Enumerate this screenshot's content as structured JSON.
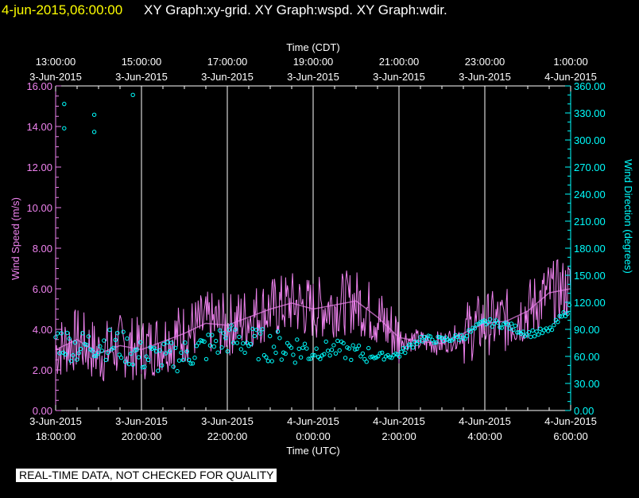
{
  "header": {
    "timestamp": "4-jun-2015,06:00:00",
    "graphs": "XY Graph:xy-grid.  XY Graph:wspd.  XY Graph:wdir."
  },
  "quality_note": "REAL-TIME DATA, NOT CHECKED FOR QUALITY",
  "colors": {
    "speed": "#ee82ee",
    "direction": "#00ffff",
    "grid": "#ffffff",
    "text": "#ffffff"
  },
  "chart_data": {
    "type": "line",
    "top_axis": {
      "title": "Time (CDT)",
      "ticks": [
        {
          "time": "13:00:00",
          "date": "3-Jun-2015"
        },
        {
          "time": "15:00:00",
          "date": "3-Jun-2015"
        },
        {
          "time": "17:00:00",
          "date": "3-Jun-2015"
        },
        {
          "time": "19:00:00",
          "date": "3-Jun-2015"
        },
        {
          "time": "21:00:00",
          "date": "3-Jun-2015"
        },
        {
          "time": "23:00:00",
          "date": "3-Jun-2015"
        },
        {
          "time": "1:00:00",
          "date": "4-Jun-2015"
        }
      ]
    },
    "bottom_axis": {
      "title": "Time (UTC)",
      "ticks": [
        {
          "date": "3-Jun-2015",
          "time": "18:00:00"
        },
        {
          "date": "3-Jun-2015",
          "time": "20:00:00"
        },
        {
          "date": "3-Jun-2015",
          "time": "22:00:00"
        },
        {
          "date": "4-Jun-2015",
          "time": "0:00:00"
        },
        {
          "date": "4-Jun-2015",
          "time": "2:00:00"
        },
        {
          "date": "4-Jun-2015",
          "time": "4:00:00"
        },
        {
          "date": "4-Jun-2015",
          "time": "6:00:00"
        }
      ]
    },
    "xlim": [
      "2015-06-03 18:00 UTC",
      "2015-06-04 06:00 UTC"
    ],
    "left_axis": {
      "label": "Wind Speed (m/s)",
      "ylim": [
        0,
        16
      ],
      "ticks": [
        "0.00",
        "2.00",
        "4.00",
        "6.00",
        "8.00",
        "10.00",
        "12.00",
        "14.00",
        "16.00"
      ]
    },
    "right_axis": {
      "label": "Wind Direction (degrees)",
      "ylim": [
        0,
        360
      ],
      "ticks": [
        "0.00",
        "30.00",
        "60.00",
        "90.00",
        "120.00",
        "150.00",
        "180.00",
        "210.00",
        "240.00",
        "270.00",
        "300.00",
        "330.00",
        "360.00"
      ]
    },
    "grid": "vertical lines at bottom-axis ticks",
    "series": [
      {
        "kind": "line",
        "axis": "left",
        "x_hours_utc": [
          18.0,
          18.5,
          19.0,
          19.5,
          20.0,
          20.5,
          21.0,
          21.5,
          22.0,
          22.5,
          23.0,
          23.5,
          24.0,
          24.5,
          25.0,
          25.5,
          26.0,
          26.5,
          27.0,
          27.5,
          28.0,
          28.5,
          29.0,
          29.5,
          30.0
        ],
        "values": [
          3.0,
          3.5,
          2.8,
          3.2,
          3.0,
          3.4,
          3.8,
          4.3,
          4.2,
          4.6,
          5.0,
          5.3,
          5.0,
          5.2,
          5.4,
          4.6,
          3.6,
          3.4,
          3.3,
          3.8,
          4.3,
          4.4,
          4.9,
          5.8,
          6.0
        ]
      },
      {
        "kind": "scatter",
        "axis": "right",
        "x_hours_utc": [
          18.0,
          18.5,
          19.0,
          19.5,
          20.0,
          20.5,
          21.0,
          21.5,
          22.0,
          22.5,
          23.0,
          23.5,
          24.0,
          24.5,
          25.0,
          25.5,
          26.0,
          26.5,
          27.0,
          27.5,
          28.0,
          28.5,
          29.0,
          29.5,
          30.0
        ],
        "values": [
          80,
          70,
          75,
          72,
          60,
          58,
          62,
          70,
          80,
          75,
          72,
          70,
          66,
          68,
          64,
          60,
          62,
          80,
          78,
          82,
          98,
          95,
          85,
          88,
          115
        ]
      }
    ],
    "outliers_direction": [
      {
        "x_hours_utc": 18.2,
        "value": 340
      },
      {
        "x_hours_utc": 18.2,
        "value": 313
      },
      {
        "x_hours_utc": 18.9,
        "value": 328
      },
      {
        "x_hours_utc": 18.9,
        "value": 309
      },
      {
        "x_hours_utc": 19.8,
        "value": 350
      }
    ]
  }
}
